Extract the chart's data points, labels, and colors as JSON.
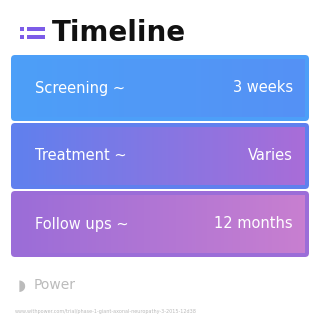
{
  "title": "Timeline",
  "title_fontsize": 20,
  "title_color": "#111111",
  "background_color": "#ffffff",
  "icon_color": "#7C5CE8",
  "rows": [
    {
      "label": "Screening ~",
      "value": "3 weeks",
      "color_left": "#4D9FF8",
      "color_right": "#5591F5"
    },
    {
      "label": "Treatment ~",
      "value": "Varies",
      "color_left": "#6080EE",
      "color_right": "#A96DD8"
    },
    {
      "label": "Follow ups ~",
      "value": "12 months",
      "color_left": "#9B6DD8",
      "color_right": "#C87FD0"
    }
  ],
  "watermark_color": "#bbbbbb",
  "url_text": "www.withpower.com/trial/phase-1-giant-axonal-neuropathy-3-2015-12d38",
  "url_color": "#bbbbbb",
  "label_fontsize": 10.5,
  "value_fontsize": 10.5
}
